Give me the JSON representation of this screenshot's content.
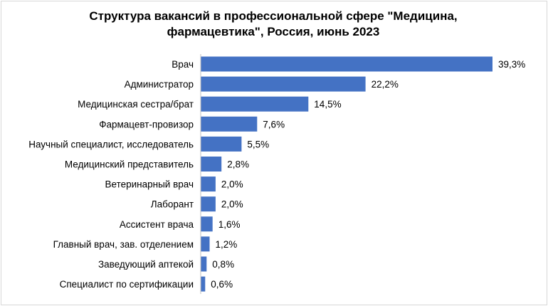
{
  "chart_data": {
    "type": "bar",
    "orientation": "horizontal",
    "title_line1": "Структура  вакансий в профессиональной сфере \"Медицина,",
    "title_line2": "фармацевтика\", Россия, июнь 2023",
    "categories": [
      "Врач",
      "Администратор",
      "Медицинская сестра/брат",
      "Фармацевт-провизор",
      "Научный специалист, исследователь",
      "Медицинский представитель",
      "Ветеринарный врач",
      "Лаборант",
      "Ассистент врача",
      "Главный врач, зав. отделением",
      "Заведующий аптекой",
      "Специалист по сертификации"
    ],
    "values": [
      39.3,
      22.2,
      14.5,
      7.6,
      5.5,
      2.8,
      2.0,
      2.0,
      1.6,
      1.2,
      0.8,
      0.6
    ],
    "value_labels": [
      "39,3%",
      "22,2%",
      "14,5%",
      "7,6%",
      "5,5%",
      "2,8%",
      "2,0%",
      "2,0%",
      "1,6%",
      "1,2%",
      "0,8%",
      "0,6%"
    ],
    "xlim": [
      0,
      40
    ],
    "grid": false,
    "legend": "none",
    "bar_color": "#4472c4"
  }
}
